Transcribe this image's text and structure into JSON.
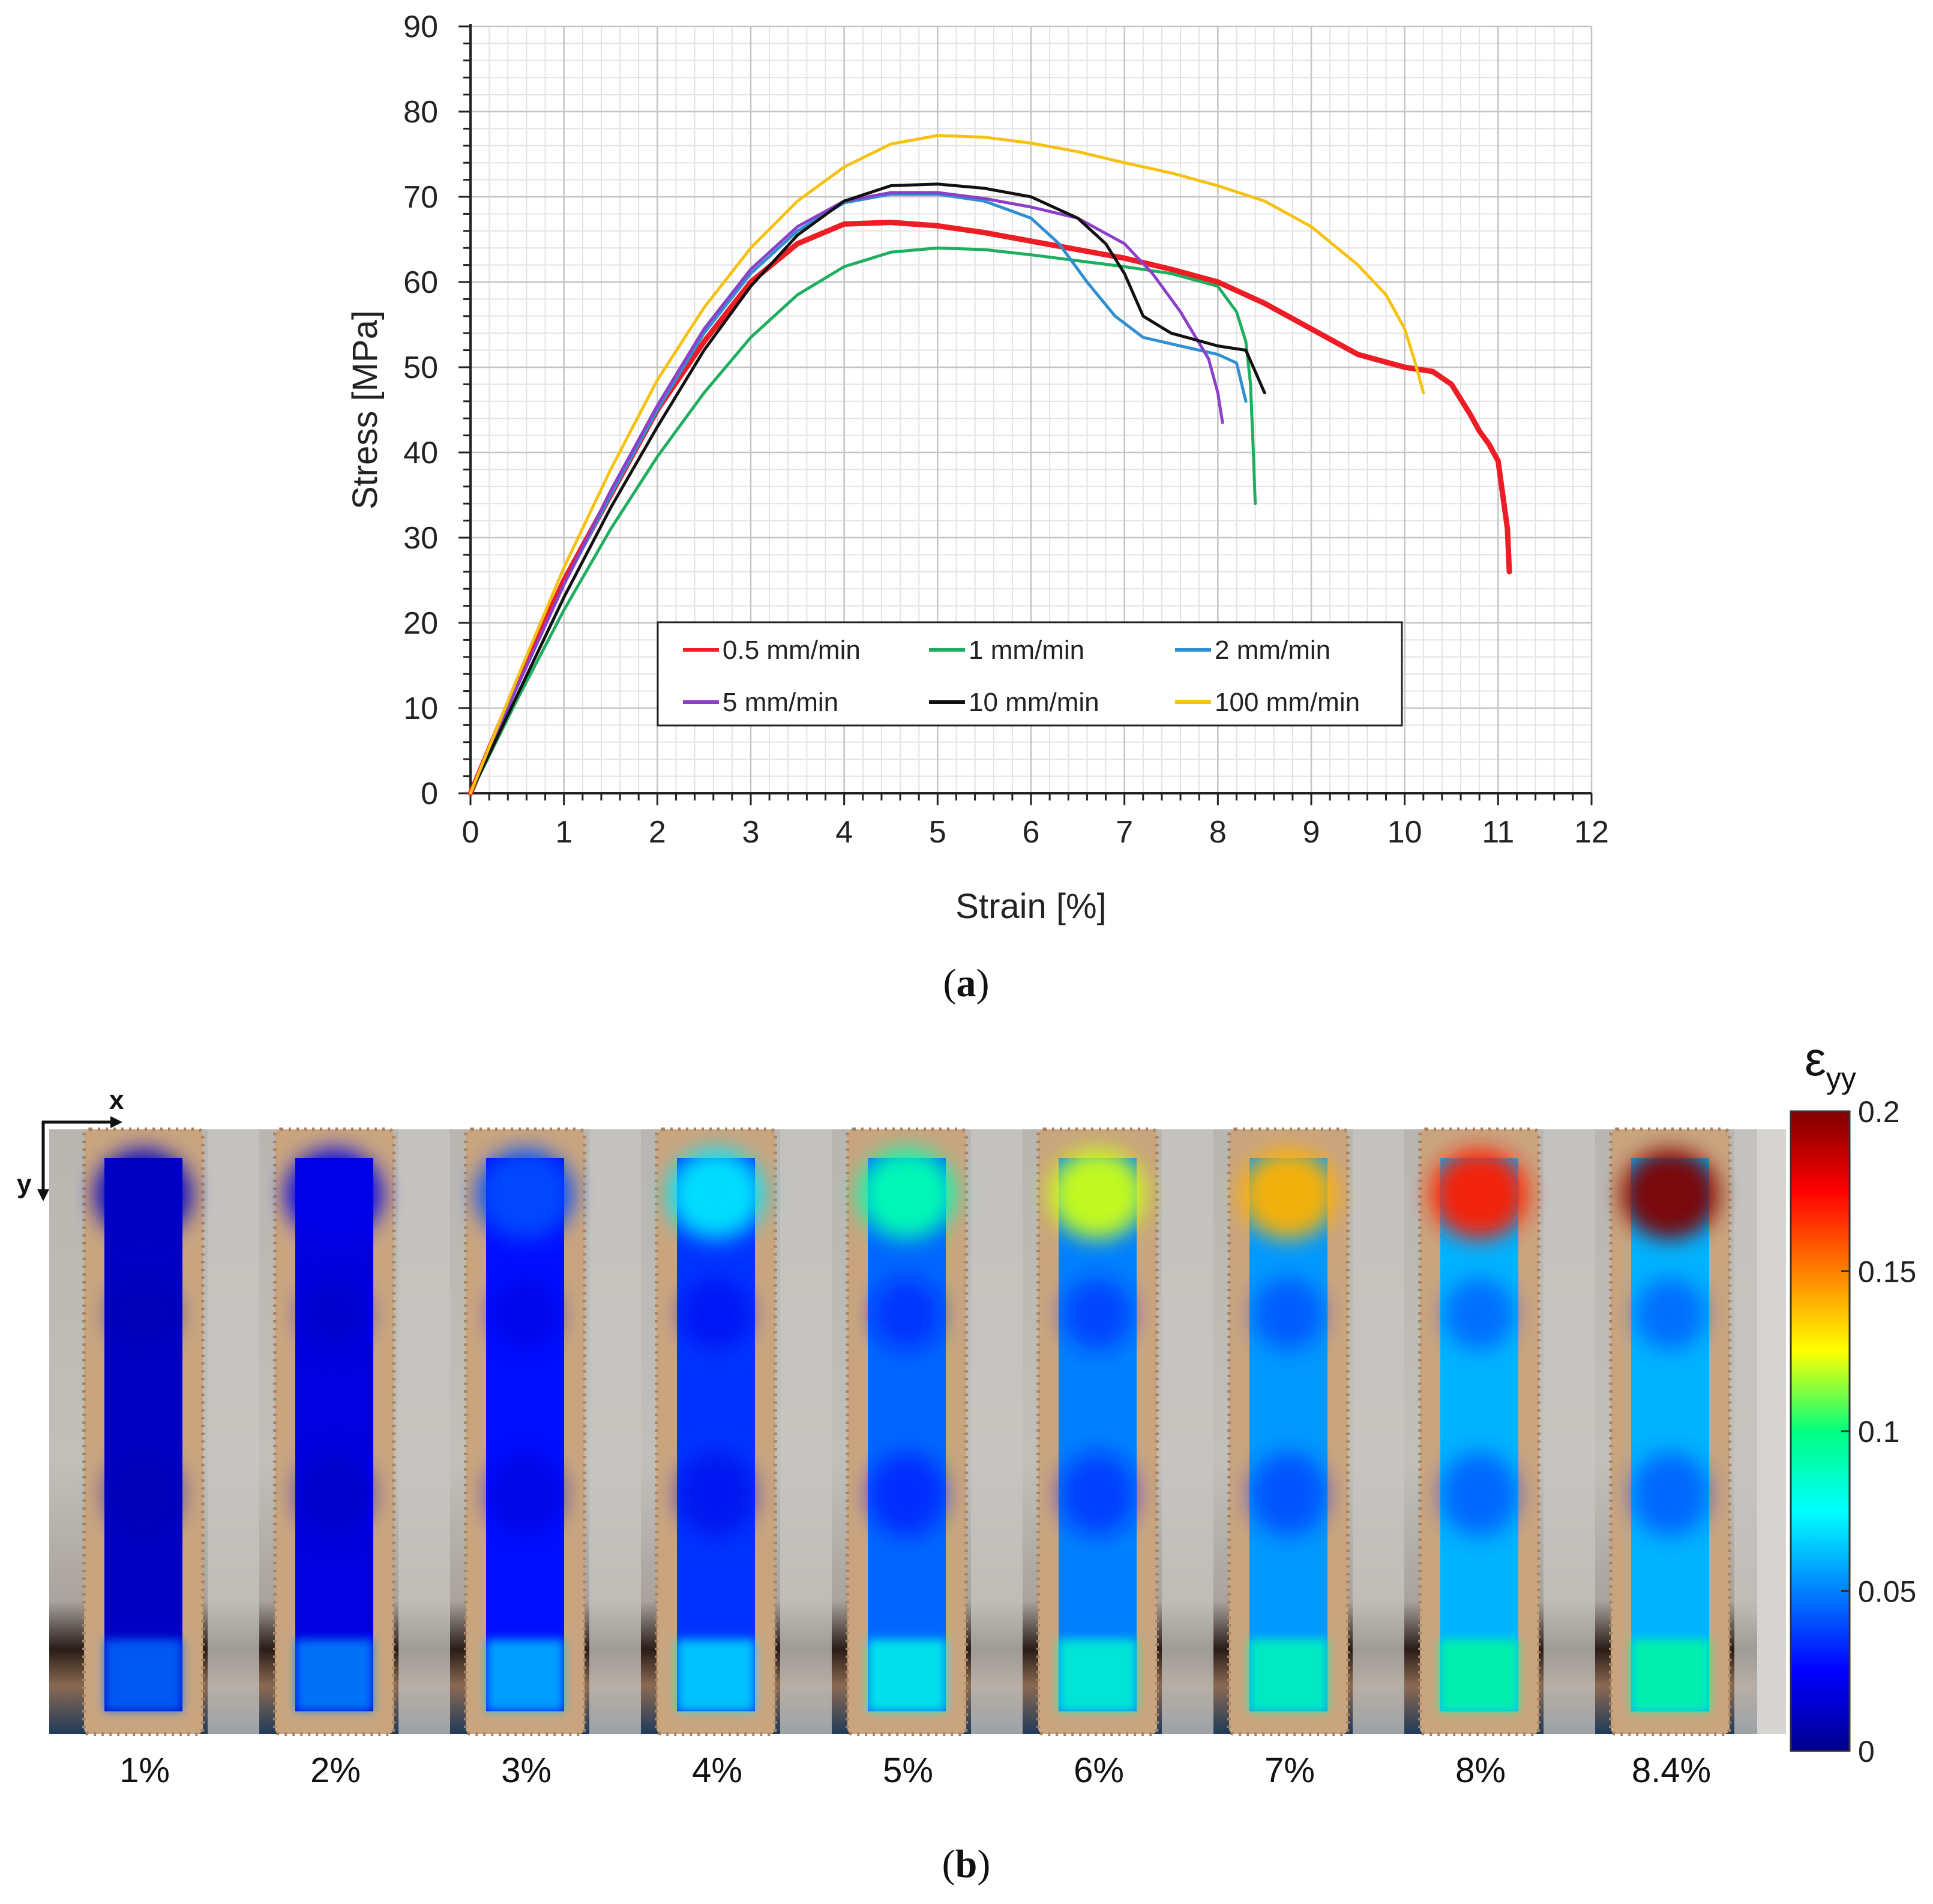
{
  "chart_data": [
    {
      "panel_label_prefix": "(",
      "panel_letter": "a",
      "panel_label_suffix": ")",
      "type": "line",
      "title": "",
      "xlabel": "Strain [%]",
      "ylabel": "Stress [MPa]",
      "xlim": [
        0,
        12
      ],
      "ylim": [
        0,
        90
      ],
      "xticks": [
        0,
        1,
        2,
        3,
        4,
        5,
        6,
        7,
        8,
        9,
        10,
        11,
        12
      ],
      "yticks": [
        0,
        10,
        20,
        30,
        40,
        50,
        60,
        70,
        80,
        90
      ],
      "grid": true,
      "legend_position": "bottom-center",
      "series": [
        {
          "name": "0.5 mm/min",
          "color": "#ee1c25",
          "x": [
            0,
            0.5,
            1,
            1.5,
            2,
            2.5,
            3,
            3.5,
            4,
            4.5,
            5,
            5.5,
            6,
            6.5,
            7,
            7.5,
            8,
            8.5,
            9,
            9.5,
            10,
            10.3,
            10.5,
            10.7,
            10.8,
            10.9,
            11.0,
            11.05,
            11.1,
            11.12
          ],
          "y": [
            0,
            13,
            25,
            35,
            45,
            53,
            60,
            64.5,
            66.8,
            67,
            66.6,
            65.8,
            64.8,
            63.8,
            62.8,
            61.5,
            60,
            57.5,
            54.5,
            51.5,
            50,
            49.5,
            48,
            44.5,
            42.5,
            41,
            39,
            35,
            31,
            26
          ]
        },
        {
          "name": "1 mm/min",
          "color": "#1fae5f",
          "x": [
            0,
            0.5,
            1,
            1.5,
            2,
            2.5,
            3,
            3.5,
            4,
            4.5,
            5,
            5.5,
            6,
            6.5,
            7,
            7.5,
            8,
            8.2,
            8.3,
            8.35,
            8.38,
            8.4
          ],
          "y": [
            0,
            11,
            21.5,
            31,
            39.5,
            47,
            53.5,
            58.5,
            61.8,
            63.5,
            64,
            63.8,
            63.2,
            62.5,
            61.8,
            61,
            59.5,
            56.5,
            53,
            48,
            40,
            34
          ]
        },
        {
          "name": "2 mm/min",
          "color": "#2f8fd2",
          "x": [
            0,
            0.5,
            1,
            1.5,
            2,
            2.5,
            3,
            3.5,
            4,
            4.5,
            5,
            5.5,
            6,
            6.3,
            6.6,
            6.9,
            7.2,
            7.6,
            8,
            8.2,
            8.3
          ],
          "y": [
            0,
            12.5,
            24.5,
            35,
            45,
            54,
            61,
            66,
            69.3,
            70.3,
            70.3,
            69.5,
            67.5,
            64.5,
            60,
            56,
            53.5,
            52.5,
            51.5,
            50.5,
            46
          ]
        },
        {
          "name": "5 mm/min",
          "color": "#8c3fc8",
          "x": [
            0,
            0.5,
            1,
            1.5,
            2,
            2.5,
            3,
            3.5,
            4,
            4.5,
            5,
            5.5,
            6,
            6.5,
            7,
            7.3,
            7.6,
            7.9,
            8.0,
            8.05
          ],
          "y": [
            0,
            12.5,
            24.5,
            35.5,
            45.5,
            54.5,
            61.5,
            66.5,
            69.5,
            70.5,
            70.5,
            69.8,
            68.8,
            67.5,
            64.5,
            61,
            56.5,
            51,
            47,
            43.5
          ]
        },
        {
          "name": "10 mm/min",
          "color": "#111111",
          "x": [
            0,
            0.5,
            1,
            1.5,
            2,
            2.5,
            3,
            3.5,
            4,
            4.5,
            5,
            5.5,
            6,
            6.5,
            6.8,
            7.0,
            7.2,
            7.5,
            8,
            8.3,
            8.5
          ],
          "y": [
            0,
            11.5,
            23,
            33.5,
            43,
            52,
            59.5,
            65.5,
            69.5,
            71.3,
            71.5,
            71,
            70,
            67.5,
            64.5,
            61,
            56,
            54,
            52.5,
            52,
            47
          ]
        },
        {
          "name": "100 mm/min",
          "color": "#f5c211",
          "x": [
            0,
            0.5,
            1,
            1.5,
            2,
            2.5,
            3,
            3.5,
            4,
            4.5,
            5,
            5.5,
            6,
            6.5,
            7,
            7.5,
            8,
            8.5,
            9,
            9.5,
            9.8,
            10.0,
            10.1,
            10.2
          ],
          "y": [
            0,
            13.5,
            26.5,
            38,
            48.5,
            57,
            64,
            69.5,
            73.5,
            76.2,
            77.2,
            77,
            76.3,
            75.3,
            74,
            72.8,
            71.3,
            69.5,
            66.5,
            62,
            58.5,
            54.5,
            51,
            47
          ]
        }
      ]
    },
    {
      "panel_label_prefix": "(",
      "panel_letter": "b",
      "panel_label_suffix": ")",
      "type": "heatmap",
      "colorbar_title": "ε",
      "colorbar_subscript": "yy",
      "colorbar_ticks": [
        "0",
        "0.05",
        "0.1",
        "0.15",
        "0.2"
      ],
      "colorbar_range": [
        0,
        0.2
      ],
      "axis_x_label": "x",
      "axis_y_label": "y",
      "frame_labels": [
        "1%",
        "2%",
        "3%",
        "4%",
        "5%",
        "6%",
        "7%",
        "8%",
        "8.4%"
      ],
      "frames": [
        {
          "label": "1%",
          "base_strain": 0.012,
          "hot_spot_strain": 0.012
        },
        {
          "label": "2%",
          "base_strain": 0.018,
          "hot_spot_strain": 0.02
        },
        {
          "label": "3%",
          "base_strain": 0.028,
          "hot_spot_strain": 0.04
        },
        {
          "label": "4%",
          "base_strain": 0.035,
          "hot_spot_strain": 0.07
        },
        {
          "label": "5%",
          "base_strain": 0.045,
          "hot_spot_strain": 0.09
        },
        {
          "label": "6%",
          "base_strain": 0.05,
          "hot_spot_strain": 0.12
        },
        {
          "label": "7%",
          "base_strain": 0.055,
          "hot_spot_strain": 0.14
        },
        {
          "label": "8%",
          "base_strain": 0.06,
          "hot_spot_strain": 0.17
        },
        {
          "label": "8.4%",
          "base_strain": 0.06,
          "hot_spot_strain": 0.2
        }
      ]
    }
  ]
}
